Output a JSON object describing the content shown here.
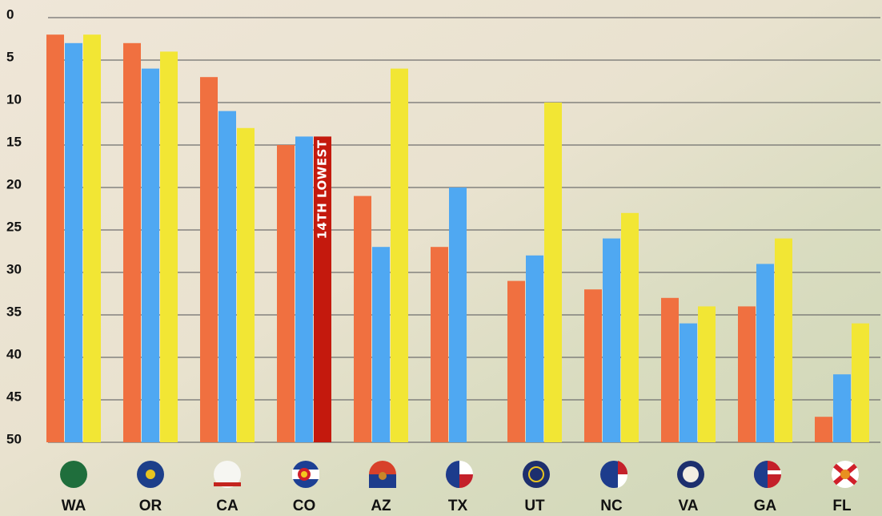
{
  "chart_data": {
    "type": "bar",
    "categories": [
      "WA",
      "OR",
      "CA",
      "CO",
      "AZ",
      "TX",
      "UT",
      "NC",
      "VA",
      "GA",
      "FL"
    ],
    "series": [
      {
        "color": "#f07040",
        "values": [
          2,
          3,
          7,
          15,
          21,
          27,
          31,
          32,
          33,
          34,
          47
        ]
      },
      {
        "color": "#4fa8f2",
        "values": [
          3,
          6,
          11,
          14,
          27,
          20,
          28,
          26,
          36,
          29,
          42
        ]
      },
      {
        "color": "#f2e634",
        "values": [
          2,
          4,
          13,
          14,
          6,
          null,
          10,
          23,
          34,
          26,
          36
        ]
      }
    ],
    "annotations": [
      {
        "text": "14TH LOWEST",
        "category": "CO",
        "series": 2,
        "color": "#c4190d"
      }
    ],
    "ylim": [
      0,
      50
    ],
    "yticks": [
      0,
      5,
      10,
      15,
      20,
      25,
      30,
      35,
      40,
      45,
      50
    ],
    "y_inverted": true,
    "grid": true
  }
}
